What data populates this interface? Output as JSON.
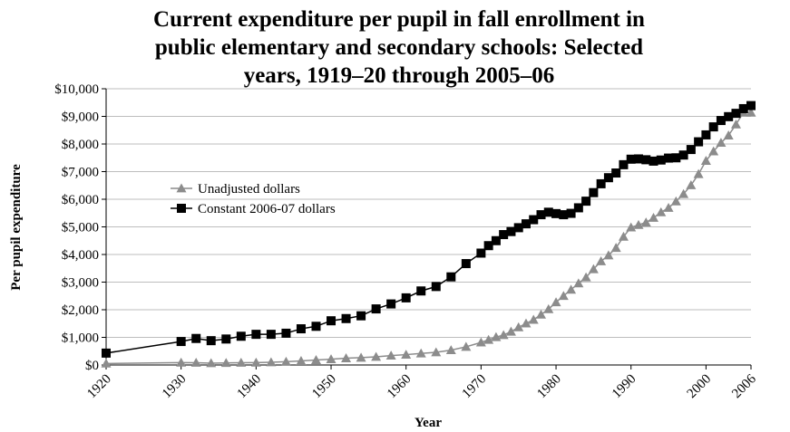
{
  "chart_data": {
    "type": "line",
    "title_lines": [
      "Current expenditure per pupil in fall enrollment in",
      "public elementary and secondary schools: Selected",
      "years, 1919–20 through 2005–06"
    ],
    "xlabel": "Year",
    "ylabel": "Per pupil expenditure",
    "xlim": [
      1920,
      2006
    ],
    "ylim": [
      0,
      10000
    ],
    "x_ticks": [
      "1920",
      "1930",
      "1940",
      "1950",
      "1960",
      "1970",
      "1980",
      "1990",
      "2000",
      "2006"
    ],
    "y_ticks": [
      "$0",
      "$1,000",
      "$2,000",
      "$3,000",
      "$4,000",
      "$5,000",
      "$6,000",
      "$7,000",
      "$8,000",
      "$9,000",
      "$10,000"
    ],
    "grid": "horizontal",
    "legend_position": "middle-left",
    "series": [
      {
        "name": "Unadjusted dollars",
        "color": "#8c8c8c",
        "marker": "triangle",
        "x": [
          1920,
          1930,
          1932,
          1934,
          1936,
          1938,
          1940,
          1942,
          1944,
          1946,
          1948,
          1950,
          1952,
          1954,
          1956,
          1958,
          1960,
          1962,
          1964,
          1966,
          1968,
          1970,
          1971,
          1972,
          1973,
          1974,
          1975,
          1976,
          1977,
          1978,
          1979,
          1980,
          1981,
          1982,
          1983,
          1984,
          1985,
          1986,
          1987,
          1988,
          1989,
          1990,
          1991,
          1992,
          1993,
          1994,
          1995,
          1996,
          1997,
          1998,
          1999,
          2000,
          2001,
          2002,
          2003,
          2004,
          2005,
          2006
        ],
        "y": [
          53,
          87,
          81,
          67,
          74,
          81,
          88,
          98,
          117,
          146,
          179,
          210,
          244,
          265,
          294,
          341,
          375,
          419,
          460,
          537,
          658,
          816,
          911,
          1011,
          1083,
          1207,
          1365,
          1504,
          1638,
          1823,
          2021,
          2272,
          2502,
          2726,
          2955,
          3173,
          3470,
          3756,
          3970,
          4240,
          4645,
          4980,
          5070,
          5160,
          5327,
          5529,
          5689,
          5923,
          6189,
          6508,
          6912,
          7392,
          7734,
          8044,
          8310,
          8711,
          9145,
          9138
        ]
      },
      {
        "name": "Constant 2006-07 dollars",
        "color": "#000000",
        "marker": "square",
        "x": [
          1920,
          1930,
          1932,
          1934,
          1936,
          1938,
          1940,
          1942,
          1944,
          1946,
          1948,
          1950,
          1952,
          1954,
          1956,
          1958,
          1960,
          1962,
          1964,
          1966,
          1968,
          1970,
          1971,
          1972,
          1973,
          1974,
          1975,
          1976,
          1977,
          1978,
          1979,
          1980,
          1981,
          1982,
          1983,
          1984,
          1985,
          1986,
          1987,
          1988,
          1989,
          1990,
          1991,
          1992,
          1993,
          1994,
          1995,
          1996,
          1997,
          1998,
          1999,
          2000,
          2001,
          2002,
          2003,
          2004,
          2005,
          2006
        ],
        "y": [
          430,
          850,
          960,
          880,
          940,
          1040,
          1110,
          1110,
          1150,
          1310,
          1400,
          1600,
          1680,
          1780,
          2030,
          2210,
          2430,
          2680,
          2840,
          3190,
          3670,
          4050,
          4320,
          4500,
          4720,
          4830,
          4970,
          5110,
          5260,
          5440,
          5530,
          5480,
          5440,
          5490,
          5690,
          5930,
          6240,
          6560,
          6780,
          6950,
          7250,
          7450,
          7460,
          7430,
          7380,
          7420,
          7490,
          7500,
          7600,
          7800,
          8080,
          8330,
          8620,
          8850,
          8990,
          9110,
          9280,
          9390
        ]
      }
    ]
  }
}
